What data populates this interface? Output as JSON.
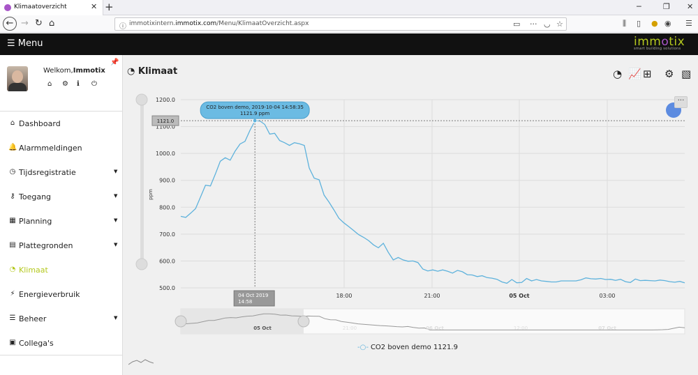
{
  "browser": {
    "tab_title": "Klimaatoverzicht",
    "url_prefix": "immotixintern.",
    "url_domain": "immotix.com",
    "url_path": "/Menu/KlimaatOverzicht.aspx"
  },
  "app": {
    "menu_label": "☰ Menu",
    "logo_main": "immotix",
    "logo_sub": "smart building solutions"
  },
  "user": {
    "welcome_prefix": "Welkom,",
    "welcome_name": "Immotix"
  },
  "sidebar": {
    "items": [
      {
        "label": "Dashboard",
        "icon": "home-icon",
        "glyph": "⌂",
        "caret": ""
      },
      {
        "label": "Alarmmeldingen",
        "icon": "bell-icon",
        "glyph": "🔔",
        "caret": ""
      },
      {
        "label": "Tijdsregistratie",
        "icon": "clock-icon",
        "glyph": "◷",
        "caret": "▼"
      },
      {
        "label": "Toegang",
        "icon": "key-icon",
        "glyph": "⚷",
        "caret": "▼"
      },
      {
        "label": "Planning",
        "icon": "calendar-icon",
        "glyph": "▦",
        "caret": "▼"
      },
      {
        "label": "Plattegronden",
        "icon": "map-icon",
        "glyph": "▤",
        "caret": "▼"
      },
      {
        "label": "Klimaat",
        "icon": "gauge-icon",
        "glyph": "◔",
        "caret": ""
      },
      {
        "label": "Energieverbruik",
        "icon": "plug-icon",
        "glyph": "⚡",
        "caret": ""
      },
      {
        "label": "Beheer",
        "icon": "list-icon",
        "glyph": "☰",
        "caret": "▼"
      },
      {
        "label": "Collega's",
        "icon": "id-card-icon",
        "glyph": "▣",
        "caret": ""
      }
    ]
  },
  "main": {
    "title": "Klimaat"
  },
  "colors": {
    "accent": "#b4c81e",
    "series": "#5eb2dc",
    "header": "#111111"
  },
  "chart_data": {
    "type": "line",
    "ylabel": "ppm",
    "ylim": [
      500,
      1200
    ],
    "yticks": [
      "1200.0",
      "1100.0",
      "1000.0",
      "900.0",
      "800.0",
      "700.0",
      "600.0",
      "500.0"
    ],
    "xticks": [
      {
        "label": "18:00",
        "bold": false
      },
      {
        "label": "21:00",
        "bold": false
      },
      {
        "label": "05 Oct",
        "bold": true
      },
      {
        "label": "03:00",
        "bold": false
      }
    ],
    "series": [
      {
        "name": "CO2 boven demo",
        "values": [
          766,
          762,
          778,
          795,
          838,
          882,
          879,
          923,
          971,
          984,
          975,
          1009,
          1035,
          1045,
          1086,
          1121,
          1121,
          1108,
          1072,
          1075,
          1048,
          1040,
          1030,
          1040,
          1036,
          1030,
          946,
          908,
          902,
          845,
          819,
          790,
          759,
          742,
          728,
          713,
          698,
          688,
          676,
          660,
          649,
          666,
          632,
          604,
          613,
          604,
          599,
          600,
          594,
          570,
          563,
          567,
          562,
          567,
          562,
          555,
          565,
          560,
          549,
          548,
          542,
          545,
          538,
          536,
          532,
          522,
          517,
          531,
          519,
          520,
          535,
          526,
          531,
          526,
          524,
          522,
          522,
          526,
          526,
          526,
          526,
          530,
          537,
          534,
          533,
          535,
          531,
          532,
          528,
          532,
          523,
          520,
          533,
          527,
          528,
          527,
          526,
          529,
          527,
          523,
          521,
          524,
          519
        ]
      }
    ],
    "tooltip": {
      "title": "CO2 boven demo, 2019-10-04 14:58:35",
      "value": "1121.9 ppm",
      "crosshair_y_label": "1121.0",
      "crosshair_x_label_date": "04 Oct 2019",
      "crosshair_x_label_time": "14:58"
    },
    "navigator_labels": [
      "05 Oct",
      "21:00",
      "06 Oct",
      "12:00",
      "07 Oct"
    ],
    "legend_text": "CO2 boven demo 1121.9",
    "legend_position": "bottom-center",
    "grid": true
  }
}
